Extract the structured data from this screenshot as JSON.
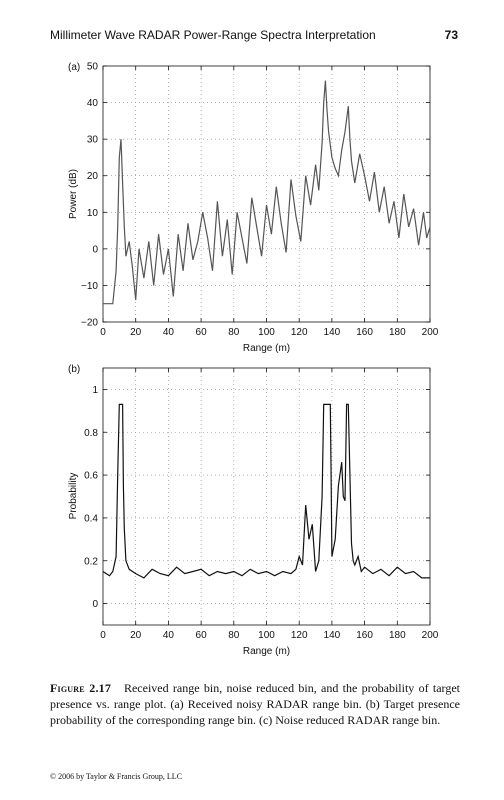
{
  "header": {
    "running_title": "Millimeter Wave RADAR Power-Range Spectra Interpretation",
    "page_number": "73"
  },
  "chart_data": [
    {
      "panel": "(a)",
      "type": "line",
      "xlabel": "Range (m)",
      "ylabel": "Power (dB)",
      "xlim": [
        0,
        200
      ],
      "ylim": [
        -20,
        50
      ],
      "xticks": [
        0,
        20,
        40,
        60,
        80,
        100,
        120,
        140,
        160,
        180,
        200
      ],
      "yticks": [
        -20,
        -10,
        0,
        10,
        20,
        30,
        40,
        50
      ],
      "ytick_labels": [
        "−20",
        "−10",
        "0",
        "10",
        "20",
        "30",
        "40",
        "50"
      ],
      "grid": "dotted",
      "color": "#555555",
      "x": [
        0,
        4,
        6,
        8,
        9,
        10,
        11,
        12,
        13,
        14,
        16,
        18,
        20,
        22,
        25,
        28,
        31,
        34,
        37,
        40,
        43,
        46,
        49,
        52,
        55,
        58,
        61,
        64,
        67,
        70,
        73,
        76,
        79,
        82,
        85,
        88,
        91,
        94,
        97,
        100,
        103,
        106,
        109,
        112,
        115,
        118,
        121,
        124,
        127,
        130,
        132,
        134,
        135,
        136,
        137,
        138,
        140,
        142,
        144,
        146,
        148,
        150,
        151,
        152,
        154,
        157,
        160,
        163,
        166,
        169,
        172,
        175,
        178,
        181,
        184,
        187,
        190,
        193,
        196,
        198,
        200
      ],
      "y": [
        -15,
        -15,
        -15,
        -6,
        6,
        25,
        30,
        18,
        6,
        -2,
        2,
        -5,
        -14,
        0,
        -8,
        2,
        -10,
        4,
        -7,
        0,
        -13,
        4,
        -6,
        7,
        -3,
        2,
        10,
        3,
        -6,
        13,
        -2,
        8,
        -7,
        10,
        3,
        -4,
        14,
        6,
        -2,
        12,
        4,
        17,
        7,
        -1,
        19,
        9,
        2,
        20,
        12,
        23,
        16,
        29,
        40,
        46,
        38,
        32,
        25,
        22,
        20,
        27,
        32,
        39,
        30,
        24,
        18,
        26,
        20,
        13,
        21,
        10,
        17,
        7,
        13,
        3,
        15,
        6,
        11,
        1,
        10,
        3,
        6
      ]
    },
    {
      "panel": "(b)",
      "type": "line",
      "xlabel": "Range (m)",
      "ylabel": "Probability",
      "xlim": [
        0,
        200
      ],
      "ylim": [
        -0.1,
        1.1
      ],
      "xticks": [
        0,
        20,
        40,
        60,
        80,
        100,
        120,
        140,
        160,
        180,
        200
      ],
      "yticks": [
        0,
        0.2,
        0.4,
        0.6,
        0.8,
        1
      ],
      "ytick_labels": [
        "0",
        "0.2",
        "0.4",
        "0.6",
        "0.8",
        "1"
      ],
      "grid": "dotted",
      "color": "#111111",
      "x": [
        0,
        4,
        6,
        8,
        9,
        10,
        12,
        12.5,
        13,
        14,
        16,
        20,
        25,
        30,
        35,
        40,
        45,
        50,
        55,
        60,
        65,
        70,
        75,
        80,
        85,
        90,
        95,
        100,
        105,
        110,
        115,
        118,
        120,
        122,
        124,
        126,
        128,
        130,
        132,
        134,
        135,
        136,
        139,
        139.5,
        140,
        142,
        144,
        146,
        147,
        148,
        149,
        150,
        152,
        153,
        154,
        156,
        158,
        160,
        165,
        170,
        175,
        180,
        185,
        190,
        195,
        200
      ],
      "y": [
        0.15,
        0.13,
        0.15,
        0.22,
        0.6,
        0.93,
        0.93,
        0.55,
        0.35,
        0.2,
        0.16,
        0.14,
        0.12,
        0.16,
        0.14,
        0.13,
        0.17,
        0.14,
        0.15,
        0.16,
        0.13,
        0.15,
        0.14,
        0.15,
        0.13,
        0.16,
        0.14,
        0.15,
        0.13,
        0.15,
        0.14,
        0.16,
        0.22,
        0.18,
        0.46,
        0.3,
        0.37,
        0.15,
        0.2,
        0.5,
        0.93,
        0.93,
        0.93,
        0.6,
        0.22,
        0.3,
        0.55,
        0.66,
        0.5,
        0.48,
        0.93,
        0.93,
        0.28,
        0.2,
        0.18,
        0.22,
        0.15,
        0.17,
        0.14,
        0.16,
        0.13,
        0.17,
        0.14,
        0.15,
        0.12,
        0.12
      ]
    }
  ],
  "caption": {
    "label": "Figure 2.17",
    "text": "Received range bin, noise reduced bin, and the probability of target presence vs. range plot. (a) Received noisy RADAR range bin. (b) Target presence probability of the corresponding range bin. (c) Noise reduced RADAR range bin."
  },
  "footer": {
    "copyright": "© 2006 by Taylor & Francis Group, LLC"
  }
}
